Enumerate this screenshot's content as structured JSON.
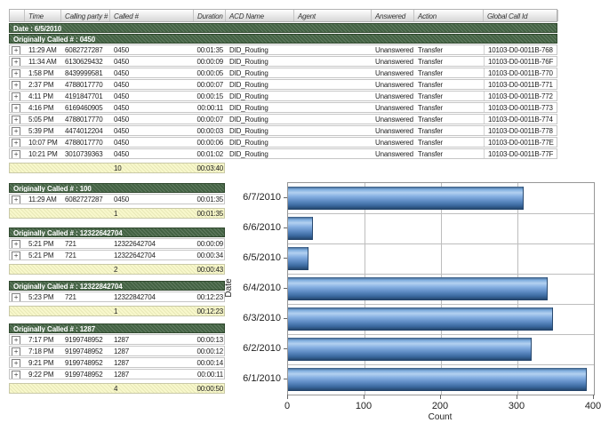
{
  "report": {
    "expand_icon": "+",
    "columns": [
      "",
      "Time",
      "Calling party #",
      "Called #",
      "Duration",
      "ACD Name",
      "Agent",
      "Answered",
      "Action",
      "Global Call Id"
    ],
    "date_group_label": "Date : 6/5/2010",
    "main_group": {
      "label": "Originally Called # : 0450",
      "rows": [
        {
          "time": "11:29 AM",
          "calling_party": "6082727287",
          "called": "0450",
          "duration": "00:01:35",
          "acd_name": "DID_Routing",
          "agent": "",
          "answered": "Unanswered",
          "action": "Transfer",
          "global_call_id": "10103-D0-0011B-768"
        },
        {
          "time": "11:34 AM",
          "calling_party": "6130629432",
          "called": "0450",
          "duration": "00:00:09",
          "acd_name": "DID_Routing",
          "agent": "",
          "answered": "Unanswered",
          "action": "Transfer",
          "global_call_id": "10103-D0-0011B-76F"
        },
        {
          "time": "1:58 PM",
          "calling_party": "8439999581",
          "called": "0450",
          "duration": "00:00:05",
          "acd_name": "DID_Routing",
          "agent": "",
          "answered": "Unanswered",
          "action": "Transfer",
          "global_call_id": "10103-D0-0011B-770"
        },
        {
          "time": "2:37 PM",
          "calling_party": "4788017770",
          "called": "0450",
          "duration": "00:00:07",
          "acd_name": "DID_Routing",
          "agent": "",
          "answered": "Unanswered",
          "action": "Transfer",
          "global_call_id": "10103-D0-0011B-771"
        },
        {
          "time": "4:11 PM",
          "calling_party": "4191847701",
          "called": "0450",
          "duration": "00:00:15",
          "acd_name": "DID_Routing",
          "agent": "",
          "answered": "Unanswered",
          "action": "Transfer",
          "global_call_id": "10103-D0-0011B-772"
        },
        {
          "time": "4:16 PM",
          "calling_party": "6169460905",
          "called": "0450",
          "duration": "00:00:11",
          "acd_name": "DID_Routing",
          "agent": "",
          "answered": "Unanswered",
          "action": "Transfer",
          "global_call_id": "10103-D0-0011B-773"
        },
        {
          "time": "5:05 PM",
          "calling_party": "4788017770",
          "called": "0450",
          "duration": "00:00:07",
          "acd_name": "DID_Routing",
          "agent": "",
          "answered": "Unanswered",
          "action": "Transfer",
          "global_call_id": "10103-D0-0011B-774"
        },
        {
          "time": "5:39 PM",
          "calling_party": "4474012204",
          "called": "0450",
          "duration": "00:00:03",
          "acd_name": "DID_Routing",
          "agent": "",
          "answered": "Unanswered",
          "action": "Transfer",
          "global_call_id": "10103-D0-0011B-778"
        },
        {
          "time": "10:07 PM",
          "calling_party": "4788017770",
          "called": "0450",
          "duration": "00:00:06",
          "acd_name": "DID_Routing",
          "agent": "",
          "answered": "Unanswered",
          "action": "Transfer",
          "global_call_id": "10103-D0-0011B-77E"
        },
        {
          "time": "10:21 PM",
          "calling_party": "3010739363",
          "called": "0450",
          "duration": "00:01:02",
          "acd_name": "DID_Routing",
          "agent": "",
          "answered": "Unanswered",
          "action": "Transfer",
          "global_call_id": "10103-D0-0011B-77F"
        }
      ],
      "summary": {
        "count": "10",
        "total_duration": "00:03:40"
      }
    },
    "groups": [
      {
        "label": "Originally Called # : 100",
        "rows": [
          {
            "time": "11:29 AM",
            "calling_party": "6082727287",
            "called": "0450",
            "duration": "00:01:35"
          }
        ],
        "summary": {
          "count": "1",
          "total_duration": "00:01:35"
        }
      },
      {
        "label": "Originally Called # : 12322642704",
        "rows": [
          {
            "time": "5:21 PM",
            "calling_party": "721",
            "called": "12322642704",
            "duration": "00:00:09"
          },
          {
            "time": "5:21 PM",
            "calling_party": "721",
            "called": "12322642704",
            "duration": "00:00:34"
          }
        ],
        "summary": {
          "count": "2",
          "total_duration": "00:00:43"
        }
      },
      {
        "label": "Originally Called # : 12322842704",
        "rows": [
          {
            "time": "5:23 PM",
            "calling_party": "721",
            "called": "12322842704",
            "duration": "00:12:23"
          }
        ],
        "summary": {
          "count": "1",
          "total_duration": "00:12:23"
        }
      },
      {
        "label": "Originally Called # : 1287",
        "rows": [
          {
            "time": "7:17 PM",
            "calling_party": "9199748952",
            "called": "1287",
            "duration": "00:00:13"
          },
          {
            "time": "7:18 PM",
            "calling_party": "9199748952",
            "called": "1287",
            "duration": "00:00:12"
          },
          {
            "time": "9:21 PM",
            "calling_party": "9199748952",
            "called": "1287",
            "duration": "00:00:14"
          },
          {
            "time": "9:22 PM",
            "calling_party": "9199748952",
            "called": "1287",
            "duration": "00:00:11"
          }
        ],
        "summary": {
          "count": "4",
          "total_duration": "00:00:50"
        }
      }
    ]
  },
  "chart_data": {
    "type": "bar",
    "orientation": "horizontal",
    "title": "",
    "categories": [
      "6/7/2010",
      "6/6/2010",
      "6/5/2010",
      "6/4/2010",
      "6/3/2010",
      "6/2/2010",
      "6/1/2010"
    ],
    "values": [
      307,
      31,
      26,
      338,
      345,
      318,
      390
    ],
    "xlabel": "Count",
    "ylabel": "Date",
    "xlim": [
      0,
      400
    ],
    "x_ticks": [
      "0",
      "100",
      "200",
      "300",
      "400"
    ],
    "grid": true,
    "legend": "none"
  },
  "colors": {
    "group_header_green": "#436243",
    "summary_yellow": "#f8f8cc",
    "bar_blue_light": "#b3d1f0",
    "bar_blue_dark": "#203f63",
    "grid_gray": "#bdbdbd"
  }
}
